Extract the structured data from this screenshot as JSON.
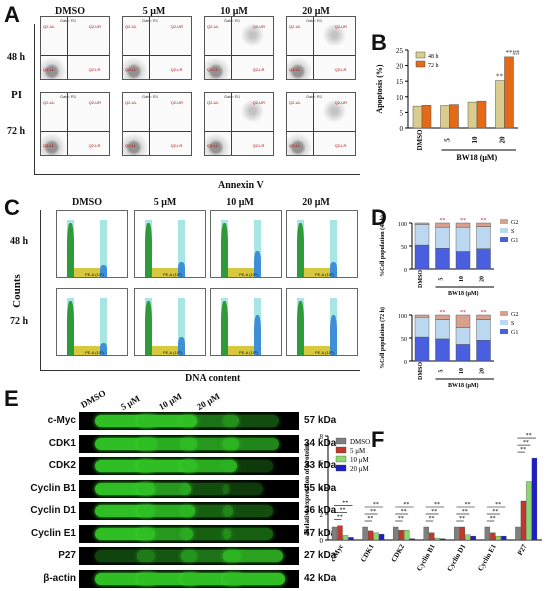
{
  "panel_letters": {
    "A": "A",
    "B": "B",
    "C": "C",
    "D": "D",
    "E": "E",
    "F": "F"
  },
  "panelA": {
    "columns": [
      "DMSO",
      "5 μM",
      "10 μM",
      "20 μM"
    ],
    "rows": [
      "48 h",
      "72 h"
    ],
    "row_group_label": "PI",
    "xlabel": "Annexin V",
    "gate_label": "Gate: R1",
    "q_top_left": "Q2-UL",
    "q_top_right": "Q2-UR",
    "q_bot_left": "Q2-LL",
    "q_bot_right": "Q2-LR"
  },
  "panelC": {
    "columns": [
      "DMSO",
      "5 μM",
      "10 μM",
      "20 μM"
    ],
    "rows": [
      "48 h",
      "72 h"
    ],
    "ylabel": "Counts",
    "xlabel": "DNA content",
    "x_axis_label": "PE-A (10³)",
    "y_axis_label": "Count"
  },
  "panelE": {
    "lanes": [
      "DMSO",
      "5 μM",
      "10 μM",
      "20 μM"
    ],
    "blots": [
      {
        "name": "c-Myc",
        "kda": "57 kDa"
      },
      {
        "name": "CDK1",
        "kda": "34 kDa"
      },
      {
        "name": "CDK2",
        "kda": "33 kDa"
      },
      {
        "name": "Cyclin B1",
        "kda": "55 kDa"
      },
      {
        "name": "Cyclin D1",
        "kda": "36 kDa"
      },
      {
        "name": "Cyclin E1",
        "kda": "47 kDa"
      },
      {
        "name": "P27",
        "kda": "27 kDa"
      },
      {
        "name": "β-actin",
        "kda": "42 kDa"
      }
    ]
  },
  "colors": {
    "b_48h": "#d9cc8c",
    "b_72h": "#e46a17",
    "g2": "#d9a08e",
    "s": "#bcd8f0",
    "g1": "#4a5fe0",
    "dmso": "#7f7f7f",
    "c5": "#c0392b",
    "c10": "#8ed66e",
    "c20": "#1e1ec8",
    "sig": "#c0185a"
  },
  "chart_data": [
    {
      "type": "bar",
      "panel": "B",
      "categories": [
        "DMSO",
        "5",
        "10",
        "20"
      ],
      "series": [
        {
          "name": "48 h",
          "values": [
            7,
            7.2,
            8.3,
            15.2
          ]
        },
        {
          "name": "72 h",
          "values": [
            7.3,
            7.5,
            8.6,
            22.8
          ]
        }
      ],
      "ylabel": "Apoptosis (%)",
      "xlabel": "BW18 (μM)",
      "ylim": [
        0,
        25
      ],
      "yticks": [
        "0",
        "5",
        "10",
        "15",
        "20",
        "25"
      ],
      "annotations": [
        "**",
        "**##"
      ]
    },
    {
      "type": "bar",
      "panel": "D-48h",
      "stacked": true,
      "categories": [
        "DMSO",
        "5",
        "10",
        "20"
      ],
      "series": [
        {
          "name": "G1",
          "values": [
            52,
            45,
            38,
            44
          ]
        },
        {
          "name": "S",
          "values": [
            45,
            46,
            53,
            48
          ]
        },
        {
          "name": "G2",
          "values": [
            3,
            9,
            9,
            8
          ]
        }
      ],
      "ylabel": "%Cell population (48 h)",
      "xlabel": "BW18  (μM)",
      "ylim": [
        0,
        100
      ],
      "yticks": [
        "0",
        "50",
        "100"
      ],
      "legend": [
        "G2",
        "S",
        "G1"
      ],
      "annotations": [
        "**",
        "**",
        "**"
      ]
    },
    {
      "type": "bar",
      "panel": "D-72h",
      "stacked": true,
      "categories": [
        "DMSO",
        "5",
        "10",
        "20"
      ],
      "series": [
        {
          "name": "G1",
          "values": [
            52,
            48,
            36,
            45
          ]
        },
        {
          "name": "S",
          "values": [
            43,
            42,
            37,
            45
          ]
        },
        {
          "name": "G2",
          "values": [
            5,
            10,
            27,
            10
          ]
        }
      ],
      "ylabel": "%Cell population (72 h)",
      "xlabel": "BW18  (μM)",
      "ylim": [
        0,
        100
      ],
      "yticks": [
        "0",
        "50",
        "100"
      ],
      "legend": [
        "G2",
        "S",
        "G1"
      ],
      "annotations": [
        "**",
        "**",
        "**"
      ]
    },
    {
      "type": "bar",
      "panel": "F",
      "categories": [
        "c-Myc",
        "CDK1",
        "CDK2",
        "Cyclin B1",
        "Cyclin D1",
        "Cyclin E1",
        "P27"
      ],
      "series": [
        {
          "name": "DMSO",
          "values": [
            1,
            1,
            1,
            1,
            1,
            1,
            1
          ]
        },
        {
          "name": "5 μM",
          "values": [
            1.1,
            0.7,
            0.75,
            0.55,
            1,
            0.55,
            3
          ]
        },
        {
          "name": "10 μM",
          "values": [
            0.35,
            0.55,
            0.75,
            0.15,
            0.4,
            0.3,
            4.5
          ]
        },
        {
          "name": "20 μM",
          "values": [
            0.2,
            0.45,
            0.1,
            0.1,
            0.3,
            0.3,
            6.3
          ]
        }
      ],
      "ylabel": "Relative expression of proteins",
      "ylim": [
        0,
        8
      ],
      "yticks": [
        "0",
        "2",
        "4",
        "6",
        "8"
      ],
      "significance": "**"
    }
  ]
}
